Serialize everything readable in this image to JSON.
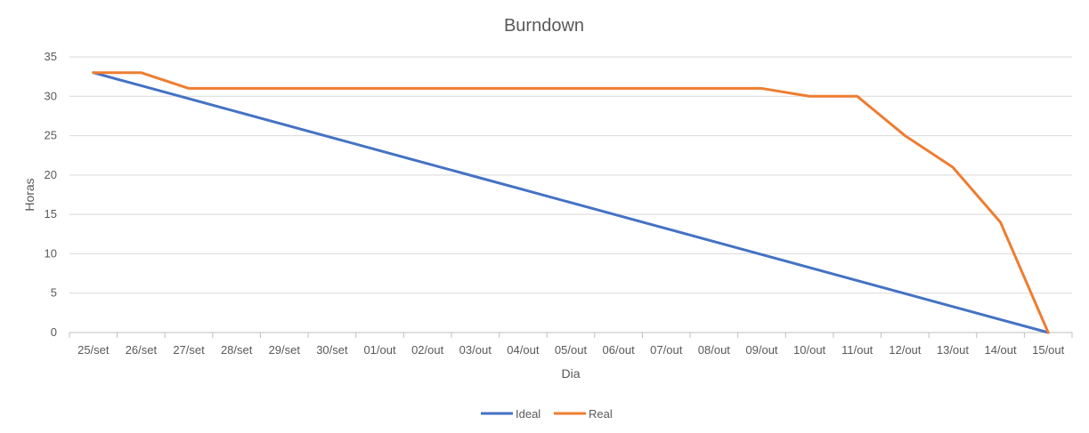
{
  "chart_data": {
    "type": "line",
    "title": "Burndown",
    "xlabel": "Dia",
    "ylabel": "Horas",
    "categories": [
      "25/set",
      "26/set",
      "27/set",
      "28/set",
      "29/set",
      "30/set",
      "01/out",
      "02/out",
      "03/out",
      "04/out",
      "05/out",
      "06/out",
      "07/out",
      "08/out",
      "09/out",
      "10/out",
      "11/out",
      "12/out",
      "13/out",
      "14/out",
      "15/out"
    ],
    "ylim": [
      0,
      35
    ],
    "yticks": [
      0,
      5,
      10,
      15,
      20,
      25,
      30,
      35
    ],
    "grid": true,
    "legend_position": "bottom",
    "series": [
      {
        "name": "Ideal",
        "color": "#4472C4",
        "values": [
          33,
          31.35,
          29.7,
          28.05,
          26.4,
          24.75,
          23.1,
          21.45,
          19.8,
          18.15,
          16.5,
          14.85,
          13.2,
          11.55,
          9.9,
          8.25,
          6.6,
          4.95,
          3.3,
          1.65,
          0
        ]
      },
      {
        "name": "Real",
        "color": "#ED7D31",
        "values": [
          33,
          33,
          31,
          31,
          31,
          31,
          31,
          31,
          31,
          31,
          31,
          31,
          31,
          31,
          31,
          30,
          30,
          25,
          21,
          14,
          0
        ]
      }
    ]
  }
}
